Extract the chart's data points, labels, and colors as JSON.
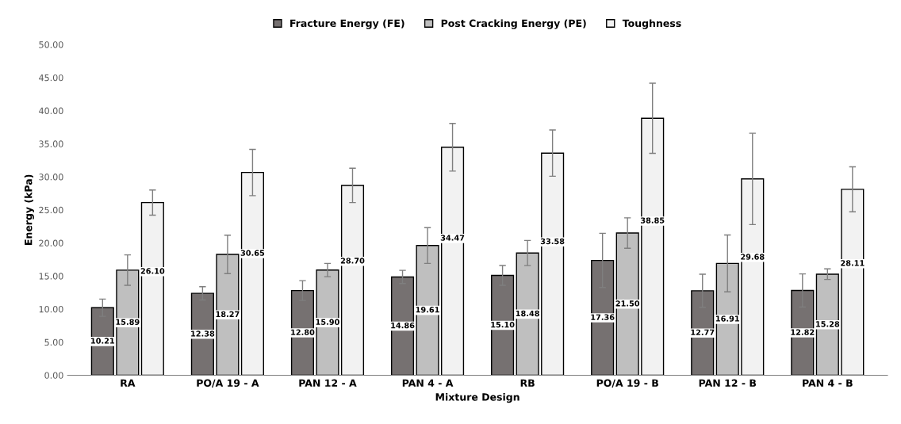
{
  "chart_data": {
    "type": "bar",
    "xlabel": "Mixture Design",
    "ylabel": "Energy (kPa)",
    "categories": [
      "RA",
      "PO/A 19 - A",
      "PAN 12 - A",
      "PAN 4 - A",
      "RB",
      "PO/A 19 - B",
      "PAN 12 - B",
      "PAN 4 - B"
    ],
    "series": [
      {
        "name": "Fracture Energy (FE)",
        "color": "#767171",
        "values": [
          10.21,
          12.38,
          12.8,
          14.86,
          15.1,
          17.36,
          12.77,
          12.82
        ],
        "errors": [
          1.3,
          1.0,
          1.5,
          1.0,
          1.5,
          4.1,
          2.5,
          2.5
        ],
        "value_labels": [
          "10.21",
          "12.38",
          "12.80",
          "14.86",
          "15.10",
          "17.36",
          "12.77",
          "12.82"
        ]
      },
      {
        "name": "Post Cracking Energy (PE)",
        "color": "#bfbfbf",
        "values": [
          15.89,
          18.27,
          15.9,
          19.61,
          18.48,
          21.5,
          16.91,
          15.28
        ],
        "errors": [
          2.3,
          2.9,
          1.0,
          2.7,
          1.9,
          2.3,
          4.3,
          0.8
        ],
        "value_labels": [
          "15.89",
          "18.27",
          "15.90",
          "19.61",
          "18.48",
          "21.50",
          "16.91",
          "15.28"
        ]
      },
      {
        "name": "Toughness",
        "color": "#f2f2f2",
        "values": [
          26.1,
          30.65,
          28.7,
          34.47,
          33.58,
          38.85,
          29.68,
          28.11
        ],
        "errors": [
          1.9,
          3.5,
          2.6,
          3.6,
          3.5,
          5.3,
          6.9,
          3.4
        ],
        "value_labels": [
          "26.10",
          "30.65",
          "28.70",
          "34.47",
          "33.58",
          "38.85",
          "29.68",
          "28.11"
        ]
      }
    ],
    "ylim": [
      0,
      50
    ],
    "yticks": [
      {
        "value": 0,
        "label": "0.00"
      },
      {
        "value": 5,
        "label": "5.00"
      },
      {
        "value": 10,
        "label": "10.00"
      },
      {
        "value": 15,
        "label": "15.00"
      },
      {
        "value": 20,
        "label": "20.00"
      },
      {
        "value": 25,
        "label": "25.00"
      },
      {
        "value": 30,
        "label": "30.00"
      },
      {
        "value": 35,
        "label": "35.00"
      },
      {
        "value": 40,
        "label": "40.00"
      },
      {
        "value": 45,
        "label": "45.00"
      },
      {
        "value": 50,
        "label": "50.00"
      }
    ],
    "grid": false,
    "legend": "top"
  }
}
